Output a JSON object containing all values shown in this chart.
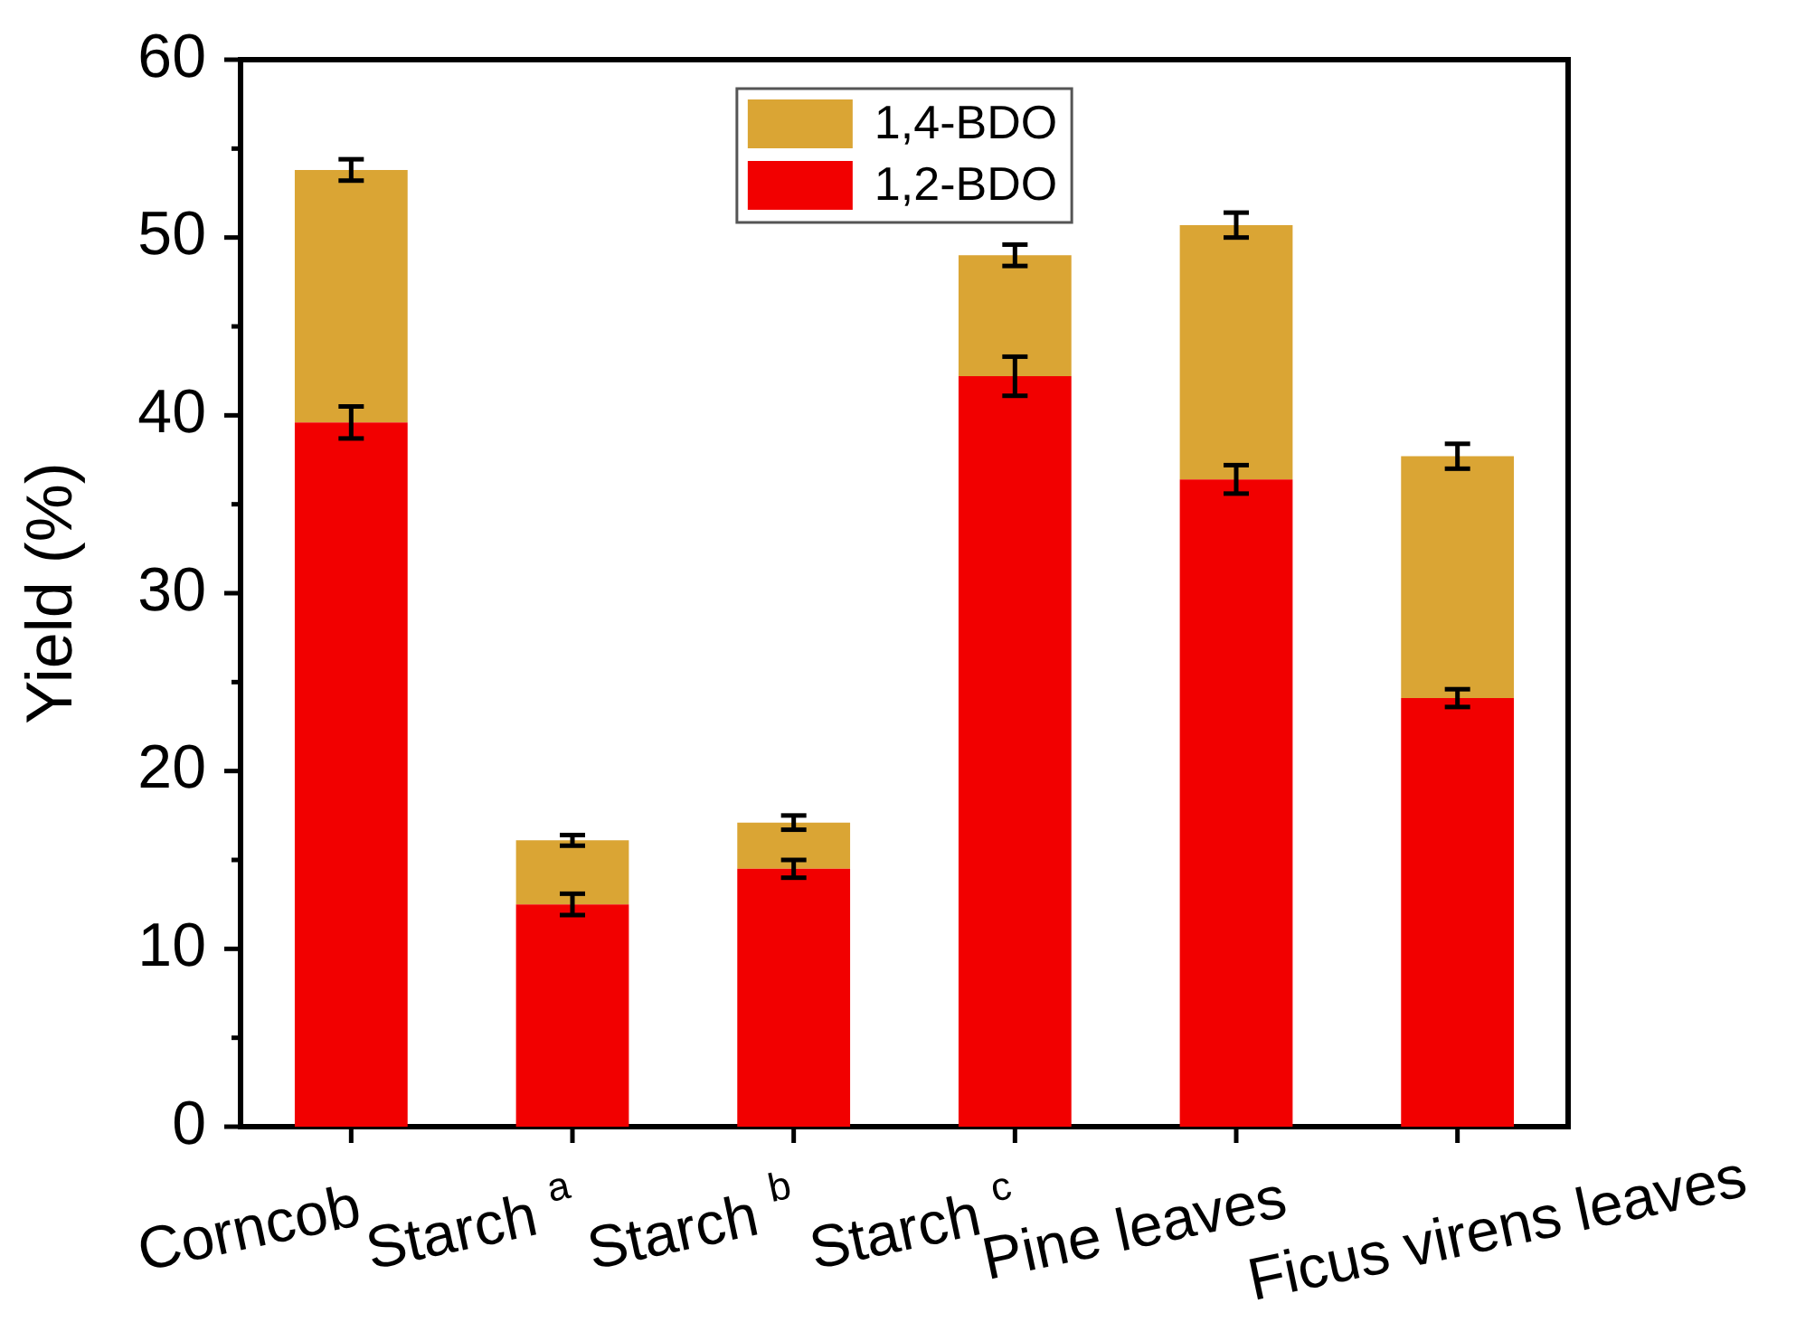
{
  "chart_data": {
    "type": "bar",
    "categories": [
      "Corncob",
      "Starch $^{a}$",
      "Starch $^{b}$",
      "Starch $^{c}$",
      "Pine leaves",
      "Ficus virens leaves"
    ],
    "series": [
      {
        "name": "1,2-BDO",
        "color": "#f20000",
        "values": [
          39.6,
          12.5,
          14.5,
          42.2,
          36.4,
          24.1
        ],
        "errors": [
          0.9,
          0.6,
          0.5,
          1.1,
          0.8,
          0.5
        ]
      },
      {
        "name": "1,4-BDO",
        "color": "#daa534",
        "values": [
          14.2,
          3.6,
          2.6,
          6.8,
          14.3,
          13.6
        ],
        "errors": [
          0.6,
          0.3,
          0.4,
          0.6,
          0.7,
          0.7
        ]
      }
    ],
    "stacked": true,
    "ylabel": "Yield (%)",
    "ylim": [
      0,
      60
    ],
    "yticks": [
      0,
      {
        "value": 5,
        "label": null
      },
      10,
      {
        "value": 15,
        "label": null
      },
      20,
      {
        "value": 25,
        "label": null
      },
      30,
      {
        "value": 35,
        "label": null
      },
      40,
      {
        "value": 45,
        "label": null
      },
      50,
      {
        "value": 55,
        "label": null
      },
      60
    ],
    "legend": "top"
  }
}
